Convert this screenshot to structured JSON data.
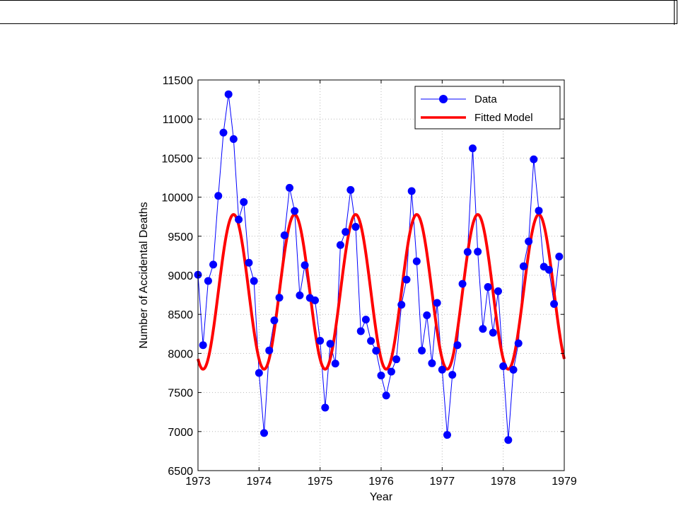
{
  "chart_data": {
    "type": "line",
    "xlabel": "Year",
    "ylabel": "Number of Accidental Deaths",
    "xlim": [
      1973,
      1979
    ],
    "ylim": [
      6500,
      11500
    ],
    "x_ticks": [
      1973,
      1974,
      1975,
      1976,
      1977,
      1978,
      1979
    ],
    "y_ticks": [
      6500,
      7000,
      7500,
      8000,
      8500,
      9000,
      9500,
      10000,
      10500,
      11000,
      11500
    ],
    "grid": true,
    "legend": {
      "placement": "top-right",
      "entries": [
        "Data",
        "Fitted Model"
      ]
    },
    "series": [
      {
        "name": "Data",
        "style": "line+markers",
        "color": "#0000ff",
        "x": [
          1973.0,
          1973.083,
          1973.167,
          1973.25,
          1973.333,
          1973.417,
          1973.5,
          1973.583,
          1973.667,
          1973.75,
          1973.833,
          1973.917,
          1974.0,
          1974.083,
          1974.167,
          1974.25,
          1974.333,
          1974.417,
          1974.5,
          1974.583,
          1974.667,
          1974.75,
          1974.833,
          1974.917,
          1975.0,
          1975.083,
          1975.167,
          1975.25,
          1975.333,
          1975.417,
          1975.5,
          1975.583,
          1975.667,
          1975.75,
          1975.833,
          1975.917,
          1976.0,
          1976.083,
          1976.167,
          1976.25,
          1976.333,
          1976.417,
          1976.5,
          1976.583,
          1976.667,
          1976.75,
          1976.833,
          1976.917,
          1977.0,
          1977.083,
          1977.167,
          1977.25,
          1977.333,
          1977.417,
          1977.5,
          1977.583,
          1977.667,
          1977.75,
          1977.833,
          1977.917,
          1978.0,
          1978.083,
          1978.167,
          1978.25,
          1978.333,
          1978.417,
          1978.5,
          1978.583,
          1978.667,
          1978.75,
          1978.833,
          1978.917
        ],
        "y": [
          9007,
          8106,
          8928,
          9137,
          10017,
          10826,
          11317,
          10744,
          9713,
          9938,
          9161,
          8927,
          7750,
          6981,
          8038,
          8422,
          8714,
          9512,
          10120,
          9823,
          8743,
          9129,
          8710,
          8680,
          8162,
          7306,
          8124,
          7870,
          9387,
          9556,
          10093,
          9620,
          8285,
          8433,
          8160,
          8034,
          7717,
          7461,
          7767,
          7925,
          8623,
          8945,
          10078,
          9179,
          8037,
          8488,
          7874,
          8647,
          7792,
          6957,
          7726,
          8106,
          8890,
          9299,
          10625,
          9302,
          8314,
          8850,
          8265,
          8796,
          7836,
          6892,
          7791,
          8129,
          9115,
          9434,
          10484,
          9827,
          9110,
          9070,
          8633,
          9240
        ]
      },
      {
        "name": "Fitted Model",
        "style": "line",
        "color": "#ff0000",
        "model": {
          "mean": 8788,
          "amplitude": 990,
          "period": 1,
          "peak_x": 1973.583
        }
      }
    ]
  }
}
